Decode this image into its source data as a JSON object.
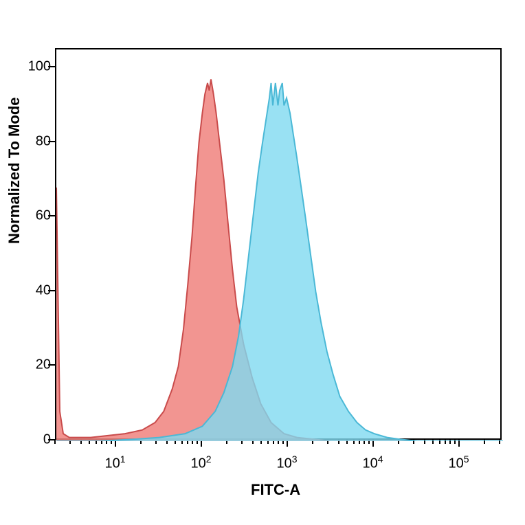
{
  "chart": {
    "type": "histogram",
    "y_label": "Normalized To Mode",
    "x_label": "FITC-A",
    "background_color": "#ffffff",
    "border_color": "#000000",
    "label_fontsize": 22,
    "tick_fontsize": 20,
    "y_axis": {
      "scale": "linear",
      "min": 0,
      "max": 105,
      "ticks": [
        0,
        20,
        40,
        60,
        80,
        100
      ]
    },
    "x_axis": {
      "scale": "log",
      "min": 0.3,
      "max": 5.5,
      "ticks": [
        1,
        2,
        3,
        4,
        5
      ],
      "tick_labels": [
        "10<sup>1</sup>",
        "10<sup>2</sup>",
        "10<sup>3</sup>",
        "10<sup>4</sup>",
        "10<sup>5</sup>"
      ]
    },
    "series": [
      {
        "name": "red_peak",
        "fill_color": "#f0837e",
        "stroke_color": "#c94b4b",
        "fill_opacity": 0.85,
        "stroke_width": 2,
        "data": [
          [
            0.3,
            68
          ],
          [
            0.34,
            8
          ],
          [
            0.38,
            2
          ],
          [
            0.45,
            1
          ],
          [
            0.55,
            1
          ],
          [
            0.7,
            1
          ],
          [
            0.9,
            1.5
          ],
          [
            1.1,
            2
          ],
          [
            1.3,
            3
          ],
          [
            1.45,
            5
          ],
          [
            1.55,
            8
          ],
          [
            1.65,
            14
          ],
          [
            1.72,
            20
          ],
          [
            1.78,
            30
          ],
          [
            1.83,
            42
          ],
          [
            1.88,
            55
          ],
          [
            1.92,
            68
          ],
          [
            1.96,
            80
          ],
          [
            2.0,
            88
          ],
          [
            2.03,
            93
          ],
          [
            2.06,
            96
          ],
          [
            2.08,
            94
          ],
          [
            2.1,
            97
          ],
          [
            2.13,
            93
          ],
          [
            2.16,
            88
          ],
          [
            2.2,
            80
          ],
          [
            2.25,
            70
          ],
          [
            2.3,
            58
          ],
          [
            2.35,
            46
          ],
          [
            2.4,
            36
          ],
          [
            2.48,
            26
          ],
          [
            2.58,
            17
          ],
          [
            2.68,
            10
          ],
          [
            2.8,
            5
          ],
          [
            2.95,
            2
          ],
          [
            3.1,
            1
          ],
          [
            3.3,
            0.5
          ],
          [
            3.5,
            0
          ],
          [
            5.5,
            0
          ]
        ]
      },
      {
        "name": "blue_peak",
        "fill_color": "#7fdaf0",
        "stroke_color": "#4ab8d6",
        "fill_opacity": 0.8,
        "stroke_width": 2,
        "data": [
          [
            0.3,
            0
          ],
          [
            0.8,
            0
          ],
          [
            1.2,
            0.5
          ],
          [
            1.5,
            1
          ],
          [
            1.8,
            2
          ],
          [
            2.0,
            4
          ],
          [
            2.15,
            8
          ],
          [
            2.25,
            13
          ],
          [
            2.35,
            20
          ],
          [
            2.42,
            28
          ],
          [
            2.48,
            38
          ],
          [
            2.54,
            50
          ],
          [
            2.6,
            62
          ],
          [
            2.65,
            72
          ],
          [
            2.7,
            80
          ],
          [
            2.74,
            86
          ],
          [
            2.78,
            92
          ],
          [
            2.8,
            96
          ],
          [
            2.82,
            90
          ],
          [
            2.85,
            96
          ],
          [
            2.88,
            90
          ],
          [
            2.9,
            94
          ],
          [
            2.93,
            96
          ],
          [
            2.95,
            90
          ],
          [
            2.98,
            92
          ],
          [
            3.02,
            88
          ],
          [
            3.06,
            82
          ],
          [
            3.1,
            76
          ],
          [
            3.15,
            68
          ],
          [
            3.2,
            60
          ],
          [
            3.26,
            50
          ],
          [
            3.32,
            40
          ],
          [
            3.38,
            32
          ],
          [
            3.45,
            24
          ],
          [
            3.52,
            18
          ],
          [
            3.6,
            12
          ],
          [
            3.7,
            8
          ],
          [
            3.8,
            5
          ],
          [
            3.9,
            3
          ],
          [
            4.0,
            2
          ],
          [
            4.15,
            1
          ],
          [
            4.3,
            0.5
          ],
          [
            4.5,
            0
          ],
          [
            5.5,
            0
          ]
        ]
      }
    ]
  }
}
